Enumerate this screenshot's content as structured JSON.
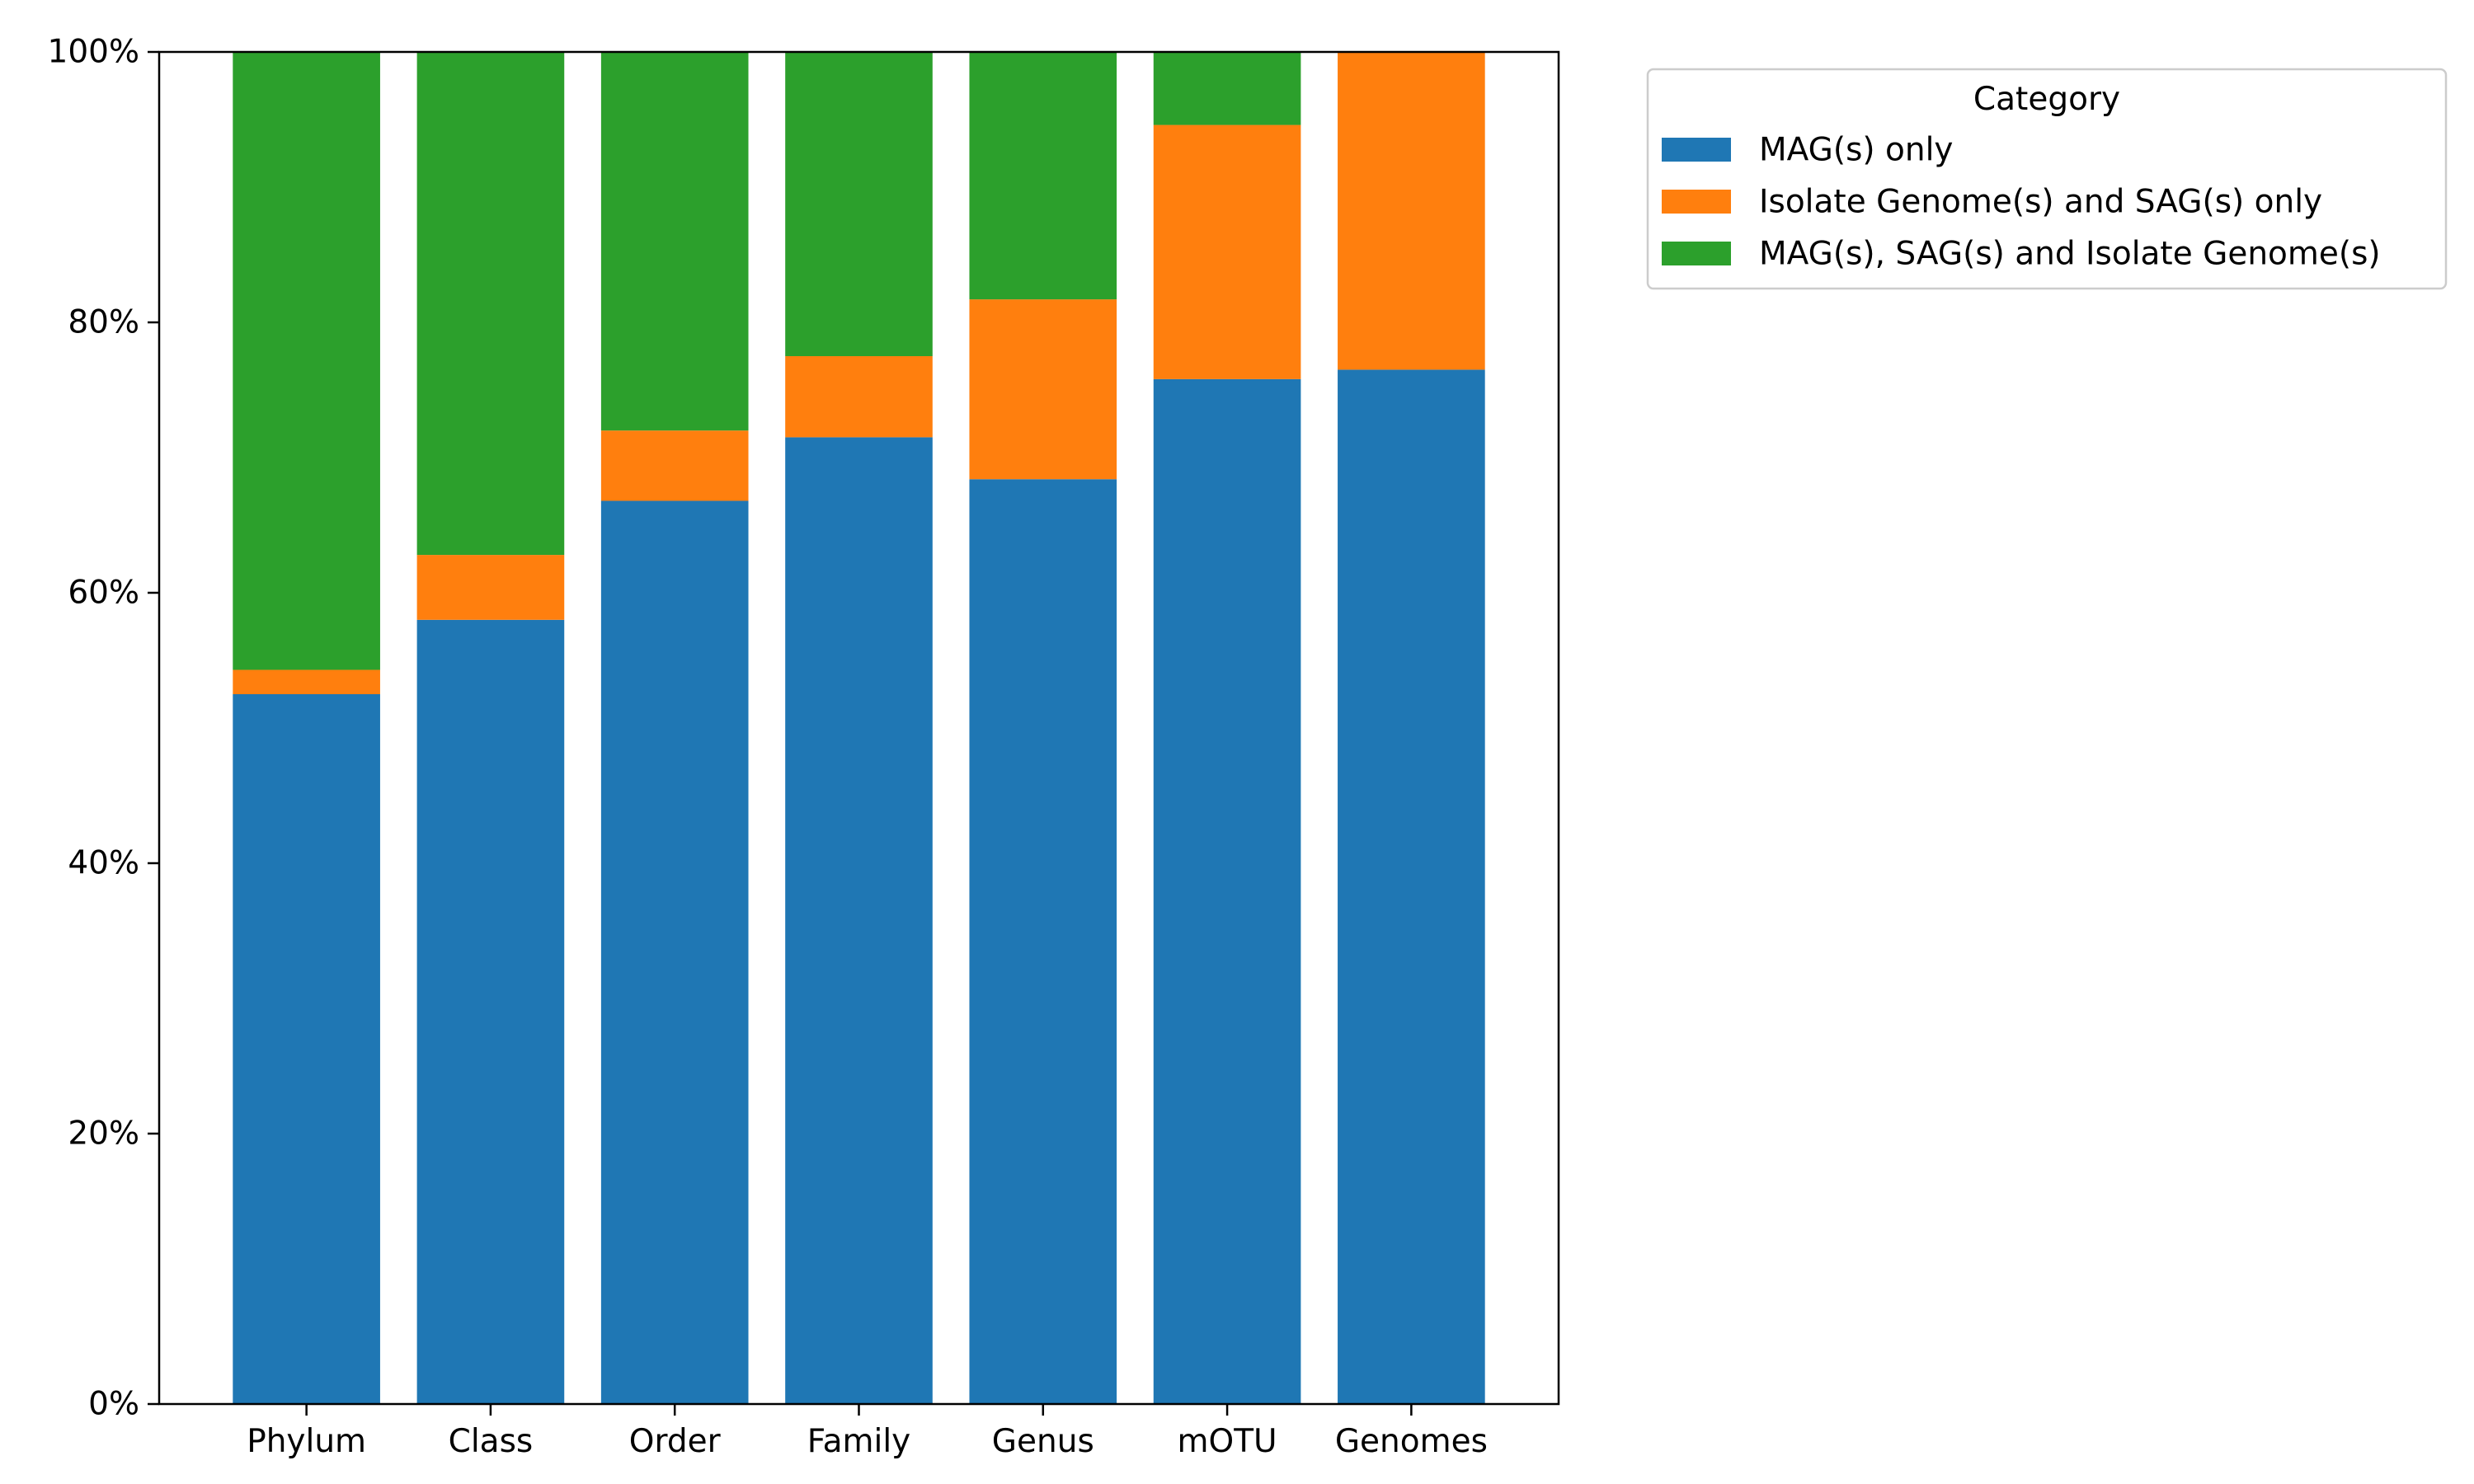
{
  "chart_data": {
    "type": "bar",
    "stacked": true,
    "categories": [
      "Phylum",
      "Class",
      "Order",
      "Family",
      "Genus",
      "mOTU",
      "Genomes"
    ],
    "series": [
      {
        "name": "MAG(s) only",
        "color": "#1f77b4",
        "values": [
          52.5,
          58.0,
          66.8,
          71.5,
          68.4,
          75.8,
          76.5
        ]
      },
      {
        "name": "Isolate Genome(s) and SAG(s) only",
        "color": "#ff7f0e",
        "values": [
          1.8,
          4.8,
          5.2,
          6.0,
          13.3,
          18.8,
          23.5
        ]
      },
      {
        "name": "MAG(s), SAG(s) and Isolate Genome(s)",
        "color": "#2ca02c",
        "values": [
          45.7,
          37.2,
          28.0,
          22.5,
          18.3,
          5.4,
          0.0
        ]
      }
    ],
    "ylim": [
      0,
      100
    ],
    "yticks": [
      "0%",
      "20%",
      "40%",
      "60%",
      "80%",
      "100%"
    ],
    "ytick_values": [
      0,
      20,
      40,
      60,
      80,
      100
    ],
    "legend": {
      "title": "Category",
      "placement": "outside-top-right"
    },
    "grid": false
  }
}
